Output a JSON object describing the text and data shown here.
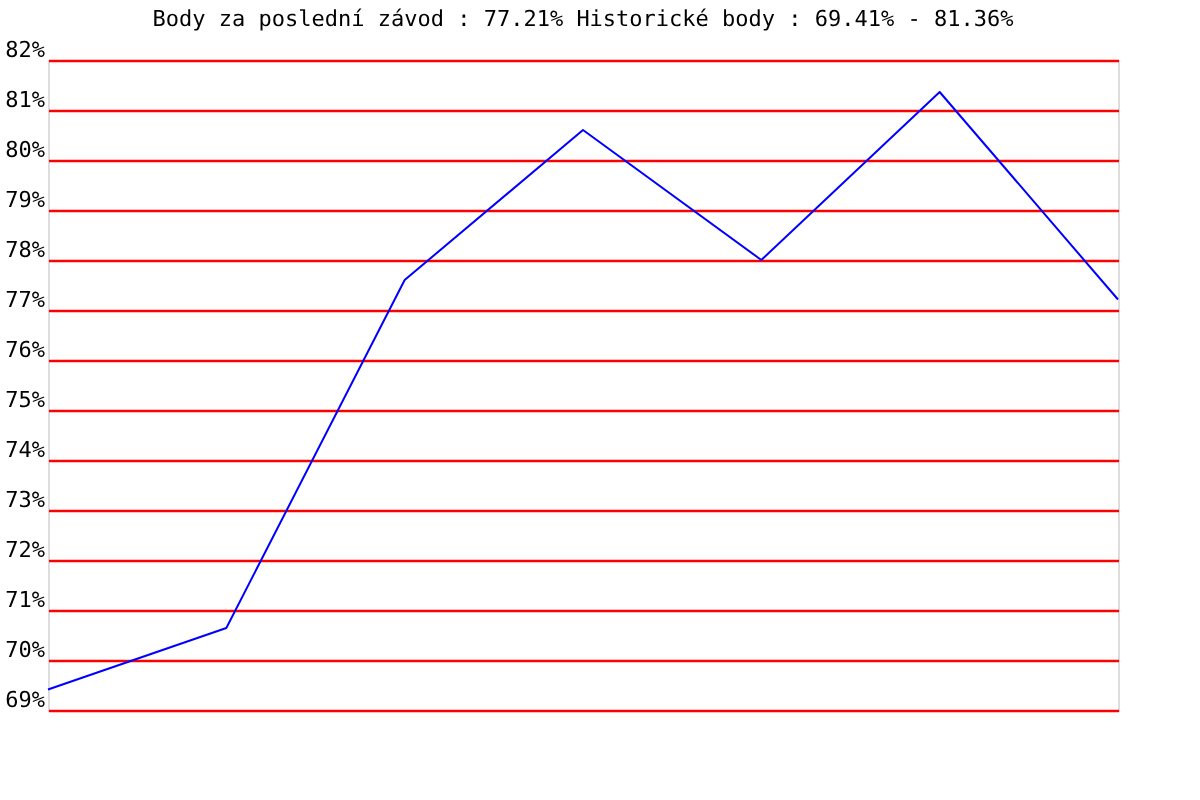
{
  "chart_data": {
    "type": "line",
    "title": "Body za poslední závod : 77.21%  Historické body : 69.41% - 81.36%",
    "categories": [
      null,
      null,
      null,
      null,
      null,
      null,
      null
    ],
    "series": [
      {
        "color": "#0000ff",
        "values": [
          69.41,
          70.64,
          77.6,
          80.6,
          78.0,
          81.36,
          77.21
        ]
      }
    ],
    "ylim": [
      69,
      82
    ],
    "yticks": [
      {
        "value": 69,
        "label": "69%"
      },
      {
        "value": 70,
        "label": "70%"
      },
      {
        "value": 71,
        "label": "71%"
      },
      {
        "value": 72,
        "label": "72%"
      },
      {
        "value": 73,
        "label": "73%"
      },
      {
        "value": 74,
        "label": "74%"
      },
      {
        "value": 75,
        "label": "75%"
      },
      {
        "value": 76,
        "label": "76%"
      },
      {
        "value": 77,
        "label": "77%"
      },
      {
        "value": 78,
        "label": "78%"
      },
      {
        "value": 79,
        "label": "79%"
      },
      {
        "value": 80,
        "label": "80%"
      },
      {
        "value": 81,
        "label": "81%"
      },
      {
        "value": 82,
        "label": "82%"
      }
    ],
    "grid": "y",
    "tick_labels": "y",
    "marker": "none",
    "line_style": "solid"
  }
}
